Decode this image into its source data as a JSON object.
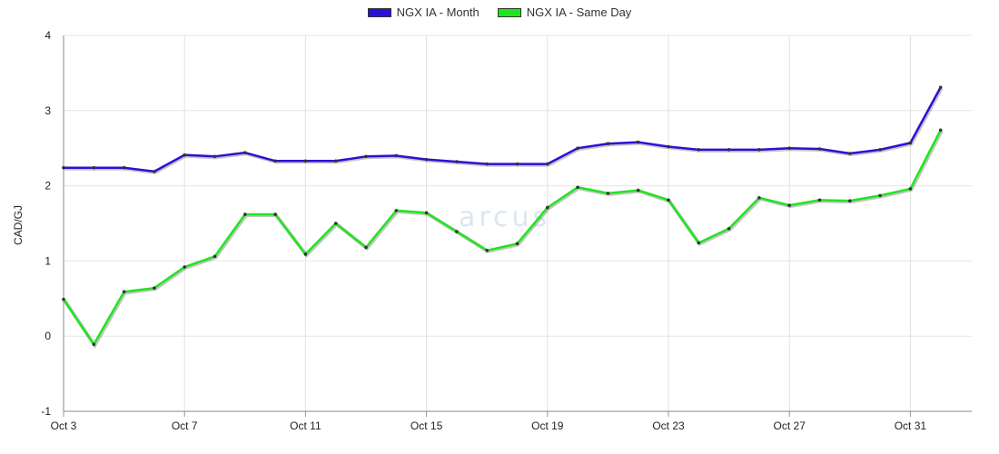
{
  "chart_data": {
    "type": "line",
    "ylabel": "CAD/GJ",
    "ylim": [
      -1,
      4
    ],
    "yticks": [
      -1,
      0,
      1,
      2,
      3,
      4
    ],
    "x": [
      "Oct 3",
      "Oct 4",
      "Oct 5",
      "Oct 6",
      "Oct 7",
      "Oct 8",
      "Oct 9",
      "Oct 10",
      "Oct 11",
      "Oct 12",
      "Oct 13",
      "Oct 14",
      "Oct 15",
      "Oct 16",
      "Oct 17",
      "Oct 18",
      "Oct 19",
      "Oct 20",
      "Oct 21",
      "Oct 22",
      "Oct 23",
      "Oct 24",
      "Oct 25",
      "Oct 26",
      "Oct 27",
      "Oct 28",
      "Oct 29",
      "Oct 30",
      "Oct 31",
      "Nov 1"
    ],
    "xticks": [
      "Oct 3",
      "Oct 7",
      "Oct 11",
      "Oct 15",
      "Oct 19",
      "Oct 23",
      "Oct 27",
      "Oct 31"
    ],
    "grid": true,
    "legend_position": "top-center",
    "series": [
      {
        "name": "NGX IA - Month",
        "color": "#2b10d8",
        "values": [
          2.24,
          2.24,
          2.24,
          2.19,
          2.41,
          2.39,
          2.44,
          2.33,
          2.33,
          2.33,
          2.39,
          2.4,
          2.35,
          2.32,
          2.29,
          2.29,
          2.29,
          2.5,
          2.56,
          2.58,
          2.52,
          2.48,
          2.48,
          2.48,
          2.5,
          2.49,
          2.43,
          2.48,
          2.57,
          3.31
        ]
      },
      {
        "name": "NGX IA - Same Day",
        "color": "#1ee61e",
        "values": [
          0.49,
          -0.11,
          0.59,
          0.64,
          0.92,
          1.06,
          1.62,
          1.62,
          1.09,
          1.5,
          1.18,
          1.67,
          1.64,
          1.39,
          1.14,
          1.23,
          1.71,
          1.98,
          1.9,
          1.94,
          1.81,
          1.24,
          1.43,
          1.84,
          1.74,
          1.81,
          1.8,
          1.87,
          1.96,
          2.74
        ]
      }
    ]
  },
  "watermark": "arcus"
}
